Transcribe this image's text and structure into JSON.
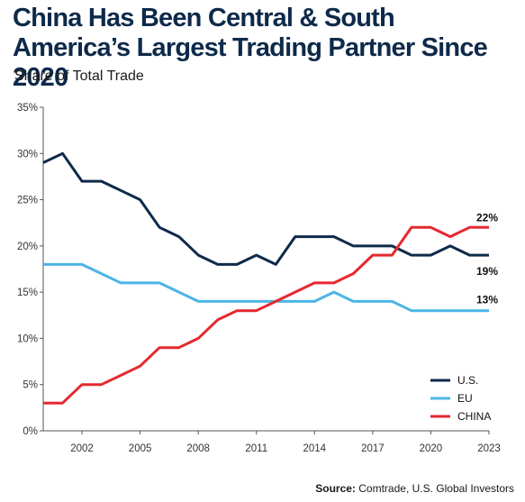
{
  "header": {
    "title": "China Has Been Central & South America’s Largest Trading Partner Since 2020",
    "subtitle": "Share of Total Trade"
  },
  "footer": {
    "source_label": "Source:",
    "source_text": "Comtrade, U.S. Global Investors"
  },
  "chart_data": {
    "type": "line",
    "title": "China Has Been Central & South America’s Largest Trading Partner Since 2020",
    "subtitle": "Share of Total Trade",
    "x": [
      2000,
      2001,
      2002,
      2003,
      2004,
      2005,
      2006,
      2007,
      2008,
      2009,
      2010,
      2011,
      2012,
      2013,
      2014,
      2015,
      2016,
      2017,
      2018,
      2019,
      2020,
      2021,
      2022,
      2023
    ],
    "x_ticks": [
      2002,
      2005,
      2008,
      2011,
      2014,
      2017,
      2020,
      2023
    ],
    "xlim": [
      2000,
      2023
    ],
    "y_ticks": [
      0,
      5,
      10,
      15,
      20,
      25,
      30,
      35
    ],
    "y_tick_suffix": "%",
    "ylim": [
      0,
      35
    ],
    "grid": false,
    "legend_position": "bottom-right",
    "series": [
      {
        "name": "U.S.",
        "color": "#0e2a4a",
        "values": [
          29,
          30,
          27,
          27,
          26,
          25,
          22,
          21,
          19,
          18,
          18,
          19,
          18,
          21,
          21,
          21,
          20,
          20,
          20,
          19,
          19,
          20,
          19,
          19
        ],
        "end_label": "19%"
      },
      {
        "name": "EU",
        "color": "#4cb5e6",
        "values": [
          18,
          18,
          18,
          17,
          16,
          16,
          16,
          15,
          14,
          14,
          14,
          14,
          14,
          14,
          14,
          15,
          14,
          14,
          14,
          13,
          13,
          13,
          13,
          13
        ],
        "end_label": "13%"
      },
      {
        "name": "CHINA",
        "color": "#e5292f",
        "values": [
          3,
          3,
          5,
          5,
          6,
          7,
          9,
          9,
          10,
          12,
          13,
          13,
          14,
          15,
          16,
          16,
          17,
          19,
          19,
          22,
          22,
          21,
          22,
          22
        ],
        "end_label": "22%"
      }
    ]
  }
}
